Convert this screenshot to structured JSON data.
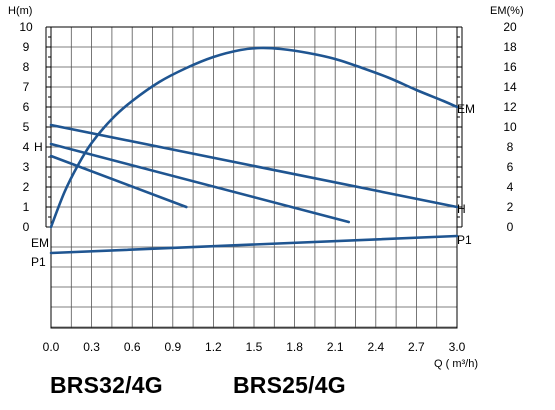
{
  "chart_data": {
    "type": "line",
    "title": "",
    "xlabel": "Q ( m³/h)",
    "ylabel_left": "H(m)",
    "ylabel_right": "EM(%)",
    "xlim": [
      0,
      3.0
    ],
    "ylim_left": [
      -10,
      10
    ],
    "ylim_right": [
      0,
      20
    ],
    "x_ticks": [
      "0.0",
      "0.3",
      "0.6",
      "0.9",
      "1.2",
      "1.5",
      "1.8",
      "2.1",
      "2.4",
      "2.7",
      "3.0"
    ],
    "y_ticks_left": [
      "0",
      "1",
      "2",
      "3",
      "4",
      "5",
      "6",
      "7",
      "8",
      "9",
      "10"
    ],
    "y_ticks_right": [
      "0",
      "2",
      "4",
      "6",
      "8",
      "10",
      "12",
      "14",
      "16",
      "18",
      "20"
    ],
    "grid": true,
    "line_color": "#1f5591",
    "series": [
      {
        "name": "",
        "axis": "left",
        "x": [
          0.0,
          1.0
        ],
        "y": [
          3.55,
          1.0
        ]
      },
      {
        "name": "",
        "axis": "left",
        "x": [
          0.0,
          2.2
        ],
        "y": [
          4.15,
          0.25
        ]
      },
      {
        "name": "H",
        "axis": "left",
        "x": [
          0.0,
          3.0
        ],
        "y": [
          5.1,
          1.0
        ]
      },
      {
        "name": "EM",
        "axis": "right",
        "x": [
          0.0,
          0.1,
          0.2,
          0.3,
          0.45,
          0.6,
          0.8,
          1.0,
          1.2,
          1.4,
          1.55,
          1.7,
          1.9,
          2.1,
          2.3,
          2.5,
          2.7,
          2.9,
          3.0
        ],
        "y": [
          0.0,
          3.5,
          6.2,
          8.4,
          10.8,
          12.6,
          14.5,
          15.9,
          17.0,
          17.7,
          17.9,
          17.8,
          17.4,
          16.8,
          15.9,
          14.9,
          13.7,
          12.6,
          12.0
        ]
      },
      {
        "name": "P1",
        "axis": "left",
        "x": [
          0.0,
          3.0
        ],
        "y": [
          -1.3,
          -0.45
        ]
      }
    ]
  },
  "labels": {
    "h_left": "H",
    "em_left": "EM",
    "p1_left": "P1",
    "em_right": "EM",
    "h_right": "H",
    "p1_right": "P1"
  },
  "models": [
    "BRS32/4G",
    "BRS25/4G"
  ]
}
